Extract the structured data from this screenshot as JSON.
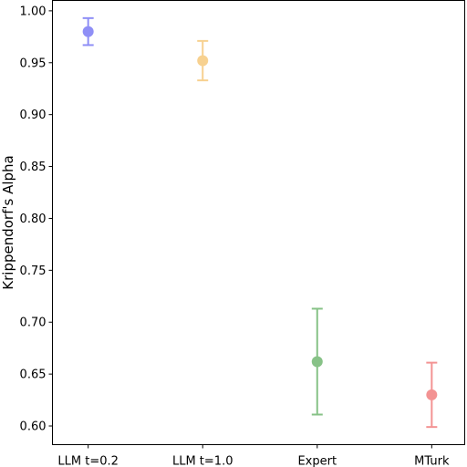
{
  "chart_data": {
    "type": "scatter",
    "title": "",
    "xlabel": "",
    "ylabel": "Krippendorf's Alpha",
    "ylim": [
      0.582,
      1.01
    ],
    "yticks": [
      "0.60",
      "0.65",
      "0.70",
      "0.75",
      "0.80",
      "0.85",
      "0.90",
      "0.95",
      "1.00"
    ],
    "grid": false,
    "legend": "none",
    "categories": [
      "LLM t=0.2",
      "LLM t=1.0",
      "Expert",
      "MTurk"
    ],
    "points": [
      {
        "category": "LLM t=0.2",
        "value": 0.98,
        "err_low": 0.967,
        "err_high": 0.993,
        "color": "#6a6af4"
      },
      {
        "category": "LLM t=1.0",
        "value": 0.952,
        "err_low": 0.933,
        "err_high": 0.971,
        "color": "#f5c26b"
      },
      {
        "category": "Expert",
        "value": 0.662,
        "err_low": 0.611,
        "err_high": 0.713,
        "color": "#5fae5f"
      },
      {
        "category": "MTurk",
        "value": 0.63,
        "err_low": 0.599,
        "err_high": 0.661,
        "color": "#f07070"
      }
    ]
  }
}
